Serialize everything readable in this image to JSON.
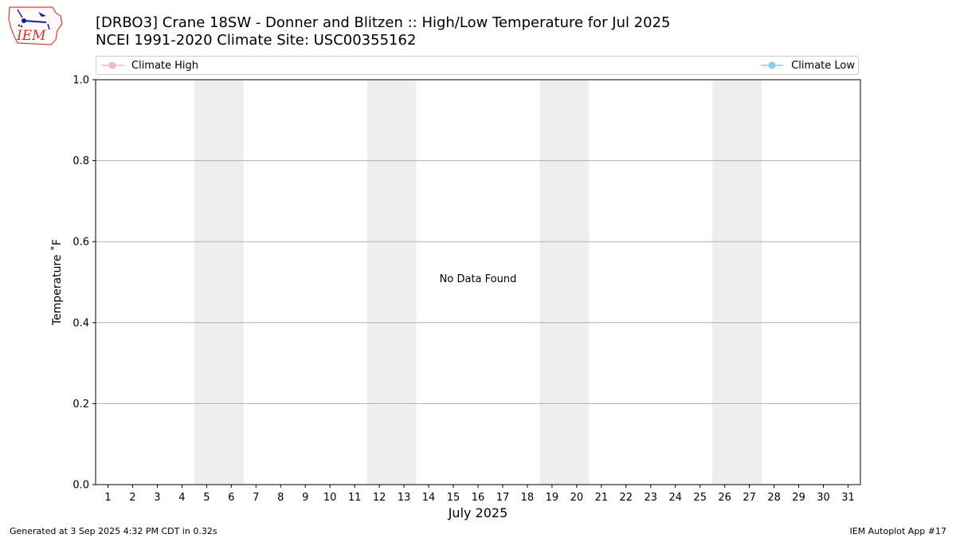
{
  "header": {
    "title_line1": "[DRBO3] Crane 18SW - Donner and Blitzen :: High/Low Temperature for Jul 2025",
    "title_line2": "NCEI 1991-2020 Climate Site: USC00355162",
    "logo_text": "IEM"
  },
  "footer": {
    "generated": "Generated at 3 Sep 2025 4:32 PM CDT in 0.32s",
    "app": "IEM Autoplot App #17"
  },
  "colors": {
    "climate_high": "#f4b8c6",
    "climate_low": "#87ceeb",
    "weekend_shade": "#eeeeee",
    "grid": "#b0b0b0"
  },
  "chart_data": {
    "type": "line",
    "title": "[DRBO3] Crane 18SW - Donner and Blitzen :: High/Low Temperature for Jul 2025",
    "subtitle": "NCEI 1991-2020 Climate Site: USC00355162",
    "xlabel": "July 2025",
    "ylabel": "Temperature ˚F",
    "xlim": [
      0.5,
      31.5
    ],
    "ylim": [
      0.0,
      1.0
    ],
    "x_ticks": [
      "1",
      "2",
      "3",
      "4",
      "5",
      "6",
      "7",
      "8",
      "9",
      "10",
      "11",
      "12",
      "13",
      "14",
      "15",
      "16",
      "17",
      "18",
      "19",
      "20",
      "21",
      "22",
      "23",
      "24",
      "25",
      "26",
      "27",
      "28",
      "29",
      "30",
      "31"
    ],
    "y_ticks": [
      "0.0",
      "0.2",
      "0.4",
      "0.6",
      "0.8",
      "1.0"
    ],
    "y_tick_values": [
      0.0,
      0.2,
      0.4,
      0.6,
      0.8,
      1.0
    ],
    "grid": "horizontal",
    "legend_placement": "top",
    "weekend_spans": [
      [
        5,
        6
      ],
      [
        12,
        13
      ],
      [
        19,
        20
      ],
      [
        26,
        27
      ]
    ],
    "series": [
      {
        "name": "Climate High",
        "values": []
      },
      {
        "name": "Climate Low",
        "values": []
      }
    ],
    "annotation": "No Data Found"
  }
}
